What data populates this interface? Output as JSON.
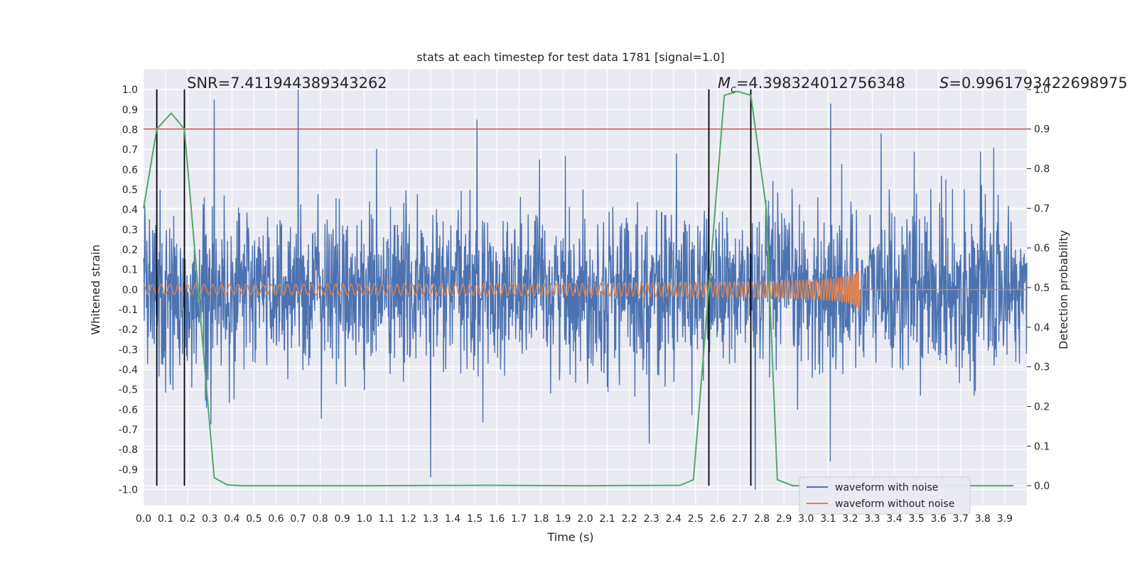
{
  "chart_data": {
    "type": "line",
    "title": "stats at each timestep for test data 1781 [signal=1.0]",
    "xlabel": "Time (s)",
    "ylabel_left": "Whitened strain",
    "ylabel_right": "Detection probability",
    "xlim": [
      0.0,
      4.0
    ],
    "ylim_left": [
      -1.08,
      1.1
    ],
    "ylim_right": [
      -0.05,
      1.05
    ],
    "x_ticks": [
      "0.0",
      "0.1",
      "0.2",
      "0.3",
      "0.4",
      "0.5",
      "0.6",
      "0.7",
      "0.8",
      "0.9",
      "1.0",
      "1.1",
      "1.2",
      "1.3",
      "1.4",
      "1.5",
      "1.6",
      "1.7",
      "1.8",
      "1.9",
      "2.0",
      "2.1",
      "2.2",
      "2.3",
      "2.4",
      "2.5",
      "2.6",
      "2.7",
      "2.8",
      "2.9",
      "3.0",
      "3.1",
      "3.2",
      "3.3",
      "3.4",
      "3.5",
      "3.6",
      "3.7",
      "3.8",
      "3.9"
    ],
    "y_ticks_left": [
      "-1.0",
      "-0.9",
      "-0.8",
      "-0.7",
      "-0.6",
      "-0.5",
      "-0.4",
      "-0.3",
      "-0.2",
      "-0.1",
      "0.0",
      "0.1",
      "0.2",
      "0.3",
      "0.4",
      "0.5",
      "0.6",
      "0.7",
      "0.8",
      "0.9",
      "1.0"
    ],
    "y_ticks_right": [
      "0.0",
      "0.1",
      "0.2",
      "0.3",
      "0.4",
      "0.5",
      "0.6",
      "0.7",
      "0.8",
      "0.9",
      "1.0"
    ],
    "grid": true,
    "legend_position": "lower-right",
    "annotations": {
      "snr_text": "SNR=7.411944389343262",
      "mc_symbol": "M",
      "mc_subscript": "c",
      "mc_value": "=4.398324012756348",
      "s_symbol": "S",
      "s_value": "=0.9961793422698975"
    },
    "threshold": {
      "axis": "right",
      "value": 0.9,
      "color": "#c44e52"
    },
    "vertical_lines": [
      0.06,
      0.185,
      2.56,
      2.75
    ],
    "series": [
      {
        "name": "waveform with noise",
        "axis": "left",
        "color": "#4c72b0",
        "kind": "noise",
        "x_range": [
          0.0,
          4.0
        ],
        "typical_amplitude": 0.35,
        "peaks": [
          {
            "x": 0.32,
            "y": 0.95
          },
          {
            "x": 0.7,
            "y": 1.0
          },
          {
            "x": 1.51,
            "y": 0.85
          },
          {
            "x": 1.3,
            "y": -0.94
          },
          {
            "x": 3.11,
            "y": 0.93
          },
          {
            "x": 3.11,
            "y": -0.86
          },
          {
            "x": 3.34,
            "y": 0.78
          },
          {
            "x": 2.77,
            "y": -1.0
          },
          {
            "x": 2.29,
            "y": -0.77
          },
          {
            "x": 3.49,
            "y": 0.69
          },
          {
            "x": 3.79,
            "y": 0.69
          },
          {
            "x": 3.85,
            "y": 0.71
          }
        ]
      },
      {
        "name": "waveform without noise",
        "axis": "left",
        "color": "#dd8452",
        "kind": "chirp",
        "x_range": [
          0.0,
          3.24
        ],
        "amplitude_start": 0.025,
        "amplitude_peak": 0.17,
        "peak_time": 3.24
      },
      {
        "name": "detection probability",
        "axis": "right",
        "color": "#55a868",
        "kind": "line",
        "x": [
          0.0,
          0.06,
          0.125,
          0.185,
          0.32,
          0.38,
          0.45,
          1.0,
          1.55,
          2.0,
          2.43,
          2.49,
          2.56,
          2.63,
          2.69,
          2.75,
          2.82,
          2.87,
          2.94,
          3.94
        ],
        "y": [
          0.7,
          0.9,
          0.94,
          0.9,
          0.02,
          0.002,
          0.0,
          0.0,
          0.001,
          0.0,
          0.001,
          0.015,
          0.5,
          0.985,
          0.995,
          0.985,
          0.7,
          0.015,
          0.0,
          0.0
        ]
      }
    ]
  }
}
